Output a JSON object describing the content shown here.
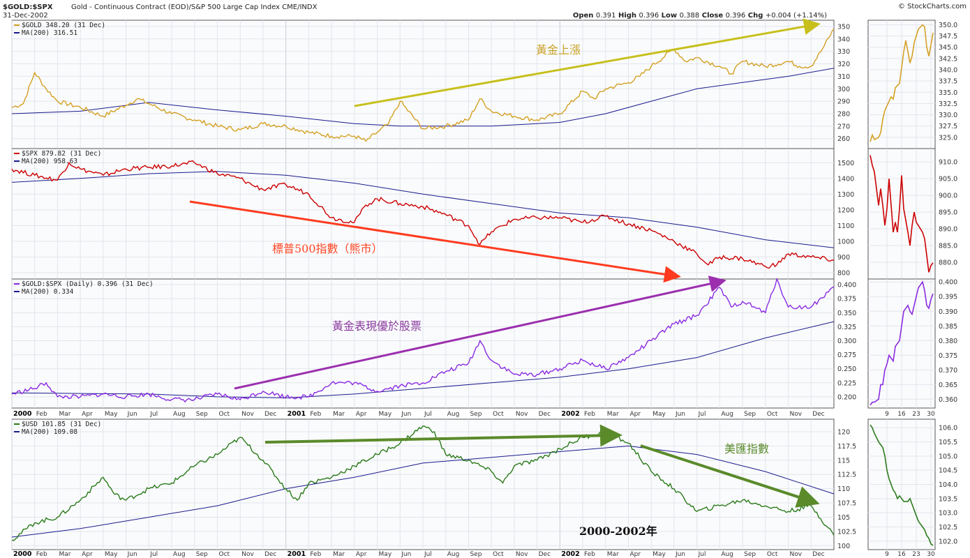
{
  "header": {
    "symbol": "$GOLD:$SPX",
    "description": "Gold - Continuous Contract (EOD)/S&P 500 Large Cap Index  CME/INDX",
    "date": "31-Dec-2002",
    "credit": "© StockCharts.com",
    "ohlc": {
      "open_label": "Open",
      "open": "0.391",
      "high_label": "High",
      "high": "0.396",
      "low_label": "Low",
      "low": "0.388",
      "close_label": "Close",
      "close": "0.396",
      "chg_label": "Chg",
      "chg": "+0.004 (+1.14%)"
    }
  },
  "x_axis": {
    "labels": [
      {
        "t": "2000",
        "m": 0,
        "bold": true
      },
      {
        "t": "Feb",
        "m": 1
      },
      {
        "t": "Mar",
        "m": 2
      },
      {
        "t": "Apr",
        "m": 3
      },
      {
        "t": "May",
        "m": 4
      },
      {
        "t": "Jun",
        "m": 5
      },
      {
        "t": "Jul",
        "m": 6
      },
      {
        "t": "Aug",
        "m": 7
      },
      {
        "t": "Sep",
        "m": 8
      },
      {
        "t": "Oct",
        "m": 9
      },
      {
        "t": "Nov",
        "m": 10
      },
      {
        "t": "Dec",
        "m": 11
      },
      {
        "t": "2001",
        "m": 12,
        "bold": true
      },
      {
        "t": "Feb",
        "m": 13
      },
      {
        "t": "Mar",
        "m": 14
      },
      {
        "t": "Apr",
        "m": 15
      },
      {
        "t": "May",
        "m": 16
      },
      {
        "t": "Jun",
        "m": 17
      },
      {
        "t": "Jul",
        "m": 18
      },
      {
        "t": "Aug",
        "m": 19
      },
      {
        "t": "Sep",
        "m": 20
      },
      {
        "t": "Oct",
        "m": 21
      },
      {
        "t": "Nov",
        "m": 22
      },
      {
        "t": "Dec",
        "m": 23
      },
      {
        "t": "2002",
        "m": 24,
        "bold": true
      },
      {
        "t": "Feb",
        "m": 25
      },
      {
        "t": "Mar",
        "m": 26
      },
      {
        "t": "Apr",
        "m": 27
      },
      {
        "t": "May",
        "m": 28
      },
      {
        "t": "Jun",
        "m": 29
      },
      {
        "t": "Jul",
        "m": 30
      },
      {
        "t": "Aug",
        "m": 31
      },
      {
        "t": "Sep",
        "m": 32
      },
      {
        "t": "Oct",
        "m": 33
      },
      {
        "t": "Nov",
        "m": 34
      },
      {
        "t": "Dec",
        "m": 35
      }
    ],
    "zoom_labels": [
      "9",
      "16",
      "23",
      "30"
    ]
  },
  "annotations": {
    "gold_up": "黃金上漲",
    "spx_bear": "標普500指數（熊市）",
    "gold_outperform": "黃金表現優於股票",
    "usd_index": "美匯指數",
    "period": "2000-2002年"
  },
  "chart_data": [
    {
      "type": "line",
      "title": "$GOLD",
      "legend": [
        {
          "name": "$GOLD 348.20 (31 Dec)",
          "color": "#d4a022"
        },
        {
          "name": "MA(200) 316.51",
          "color": "#1a1a8c"
        }
      ],
      "ylim": [
        252,
        355
      ],
      "yticks": [
        260,
        270,
        280,
        290,
        300,
        310,
        320,
        330,
        340,
        350
      ],
      "x_months": [
        0,
        0.5,
        1,
        1.5,
        2,
        3,
        4,
        5,
        5.5,
        6,
        7,
        8,
        9,
        10,
        11,
        12,
        13,
        14,
        15,
        15.5,
        16,
        16.5,
        17,
        18,
        19,
        20,
        20.5,
        21,
        22,
        23,
        24,
        25,
        25.5,
        26,
        27,
        27.5,
        28,
        29,
        29.5,
        30,
        31,
        31.5,
        32,
        33,
        34,
        34.5,
        35,
        35.5,
        36
      ],
      "values": [
        285,
        288,
        313,
        300,
        290,
        285,
        278,
        287,
        292,
        288,
        280,
        275,
        270,
        267,
        272,
        270,
        265,
        262,
        262,
        258,
        265,
        272,
        290,
        268,
        270,
        275,
        292,
        282,
        278,
        275,
        280,
        298,
        292,
        300,
        305,
        310,
        318,
        332,
        322,
        325,
        318,
        312,
        322,
        318,
        322,
        318,
        318,
        332,
        348
      ],
      "ma": {
        "name": "MA(200)",
        "x_months": [
          0,
          3,
          6,
          9,
          12,
          15,
          17,
          21,
          24,
          26,
          28,
          30,
          32,
          34,
          36
        ],
        "values": [
          280,
          282,
          289,
          283,
          278,
          272,
          270,
          270,
          273,
          280,
          290,
          300,
          305,
          310,
          316.51
        ]
      },
      "zoom": {
        "yticks": [
          325,
          327.5,
          330,
          332.5,
          335,
          337.5,
          340,
          342.5,
          345,
          347.5,
          350
        ],
        "ylim": [
          322.5,
          351
        ],
        "x_days": [
          1,
          2,
          3,
          5,
          6,
          7,
          8,
          9,
          10,
          11,
          12,
          13,
          15,
          16,
          17,
          18,
          19,
          20,
          21,
          22,
          23,
          24,
          26,
          27,
          28,
          29,
          30,
          31
        ],
        "values": [
          324,
          325.5,
          324.5,
          325,
          326,
          329,
          331,
          332,
          333,
          334,
          333.5,
          336,
          337,
          340.5,
          344,
          346.5,
          344,
          341.5,
          343,
          346,
          347.5,
          349,
          350,
          349.5,
          345,
          343,
          345.5,
          348.2
        ]
      }
    },
    {
      "type": "line",
      "title": "$SPX",
      "legend": [
        {
          "name": "$SPX 879.82 (31 Dec)",
          "color": "#cc0000"
        },
        {
          "name": "MA(200) 958.63",
          "color": "#1a1a8c"
        }
      ],
      "ylim": [
        760,
        1590
      ],
      "yticks": [
        800,
        900,
        1000,
        1100,
        1200,
        1300,
        1400,
        1500
      ],
      "x_months": [
        0,
        1,
        2,
        2.5,
        3,
        4,
        5,
        6,
        7,
        8,
        9,
        10,
        10.5,
        11,
        12,
        13,
        14,
        15,
        15.5,
        16,
        17,
        18,
        19,
        20,
        20.5,
        21,
        22,
        23,
        24,
        25,
        26,
        27,
        28,
        29,
        30,
        30.5,
        31,
        32,
        33,
        33.5,
        34,
        35,
        36
      ],
      "values": [
        1460,
        1420,
        1390,
        1500,
        1460,
        1420,
        1460,
        1470,
        1480,
        1500,
        1430,
        1400,
        1360,
        1330,
        1360,
        1300,
        1150,
        1120,
        1230,
        1270,
        1240,
        1220,
        1170,
        1100,
        980,
        1060,
        1140,
        1150,
        1150,
        1120,
        1160,
        1110,
        1070,
        1000,
        920,
        850,
        900,
        890,
        840,
        850,
        920,
        900,
        879.82
      ],
      "ma": {
        "name": "MA(200)",
        "x_months": [
          0,
          3,
          6,
          9,
          12,
          15,
          18,
          21,
          24,
          27,
          30,
          33,
          36
        ],
        "values": [
          1375,
          1400,
          1430,
          1445,
          1420,
          1370,
          1300,
          1240,
          1180,
          1150,
          1090,
          1010,
          958.63
        ]
      },
      "zoom": {
        "yticks": [
          880,
          885,
          890,
          895,
          900,
          905,
          910
        ],
        "ylim": [
          875,
          914
        ],
        "x_days": [
          1,
          2,
          3,
          5,
          6,
          7,
          8,
          9,
          10,
          12,
          13,
          14,
          15,
          16,
          17,
          19,
          20,
          21,
          22,
          23,
          24,
          26,
          27,
          28,
          29,
          30,
          31
        ],
        "values": [
          912,
          909,
          907,
          897,
          902,
          897,
          891,
          896,
          905,
          889,
          892,
          889,
          896,
          906,
          896,
          889,
          885,
          891,
          895,
          892,
          891,
          889,
          887,
          882,
          877,
          879,
          879.82
        ]
      }
    },
    {
      "type": "line",
      "title": "$GOLD:$SPX (Daily)",
      "legend": [
        {
          "name": "$GOLD:$SPX (Daily) 0.396 (31 Dec)",
          "color": "#8a2be2"
        },
        {
          "name": "MA(200) 0.334",
          "color": "#1a1a8c"
        }
      ],
      "ylim": [
        0.18,
        0.41
      ],
      "yticks": [
        0.2,
        0.225,
        0.25,
        0.275,
        0.3,
        0.325,
        0.35,
        0.375,
        0.4
      ],
      "x_months": [
        0,
        1,
        1.5,
        2,
        3,
        4,
        5,
        6,
        7,
        8,
        9,
        10,
        11,
        12,
        13,
        14,
        15,
        16,
        17,
        18,
        19,
        20,
        20.5,
        21,
        22,
        23,
        24,
        25,
        26,
        27,
        28,
        29,
        30,
        31,
        31.5,
        32,
        33,
        33.5,
        34,
        35,
        36
      ],
      "values": [
        0.205,
        0.215,
        0.225,
        0.2,
        0.2,
        0.205,
        0.2,
        0.205,
        0.195,
        0.195,
        0.205,
        0.195,
        0.21,
        0.2,
        0.2,
        0.225,
        0.225,
        0.21,
        0.22,
        0.225,
        0.245,
        0.26,
        0.3,
        0.265,
        0.24,
        0.24,
        0.25,
        0.265,
        0.25,
        0.27,
        0.3,
        0.33,
        0.345,
        0.395,
        0.36,
        0.37,
        0.35,
        0.41,
        0.36,
        0.36,
        0.396
      ],
      "ma": {
        "name": "MA(200)",
        "x_months": [
          0,
          6,
          9,
          12,
          15,
          18,
          21,
          24,
          27,
          30,
          33,
          36
        ],
        "values": [
          0.207,
          0.205,
          0.2,
          0.198,
          0.205,
          0.215,
          0.225,
          0.235,
          0.25,
          0.27,
          0.305,
          0.334
        ]
      },
      "zoom": {
        "yticks": [
          0.36,
          0.365,
          0.37,
          0.375,
          0.38,
          0.385,
          0.39,
          0.395,
          0.4
        ],
        "ylim": [
          0.357,
          0.401
        ],
        "x_days": [
          1,
          2,
          3,
          5,
          6,
          7,
          8,
          9,
          10,
          12,
          13,
          14,
          15,
          16,
          17,
          19,
          20,
          21,
          22,
          23,
          24,
          26,
          27,
          28,
          29,
          30,
          31
        ],
        "values": [
          0.358,
          0.359,
          0.359,
          0.36,
          0.365,
          0.365,
          0.37,
          0.372,
          0.375,
          0.373,
          0.378,
          0.379,
          0.38,
          0.385,
          0.39,
          0.392,
          0.39,
          0.389,
          0.392,
          0.395,
          0.398,
          0.4,
          0.397,
          0.392,
          0.391,
          0.394,
          0.396
        ]
      }
    },
    {
      "type": "line",
      "title": "$USD",
      "legend": [
        {
          "name": "$USD 101.85 (31 Dec)",
          "color": "#2a7a1a"
        },
        {
          "name": "MA(200) 109.08",
          "color": "#1a1a8c"
        }
      ],
      "ylim": [
        99.3,
        122.2
      ],
      "yticks": [
        100,
        102.5,
        105,
        107.5,
        110,
        112.5,
        115,
        117.5,
        120
      ],
      "x_months": [
        0,
        1,
        2,
        3,
        4,
        4.5,
        5,
        6,
        7,
        8,
        9,
        10,
        11,
        12,
        12.5,
        13,
        14,
        15,
        16,
        17,
        18,
        18.5,
        19,
        20,
        21,
        21.5,
        22,
        23,
        24,
        25,
        26,
        27,
        28,
        29,
        30,
        31,
        32,
        33,
        34,
        35,
        36
      ],
      "values": [
        101,
        104,
        105,
        108,
        112,
        109,
        108,
        110,
        111,
        114,
        116,
        119,
        115,
        110,
        108,
        111,
        112,
        114,
        116,
        118,
        121,
        120,
        116,
        115,
        113,
        111,
        114,
        115,
        117,
        119,
        120,
        118,
        113,
        110,
        106,
        107,
        108,
        107,
        106,
        107,
        101.85
      ],
      "ma": {
        "name": "MA(200)",
        "x_months": [
          0,
          3,
          6,
          9,
          12,
          15,
          18,
          21,
          24,
          27,
          30,
          33,
          36
        ],
        "values": [
          101.5,
          103,
          105,
          107,
          110,
          112,
          114.5,
          115.5,
          116.5,
          117.5,
          116,
          113,
          109.08
        ]
      },
      "zoom": {
        "yticks": [
          102,
          102.5,
          103,
          103.5,
          104,
          104.5,
          105,
          105.5,
          106
        ],
        "ylim": [
          101.7,
          106.3
        ],
        "x_days": [
          1,
          2,
          3,
          5,
          6,
          7,
          8,
          9,
          10,
          12,
          13,
          14,
          15,
          16,
          17,
          19,
          20,
          21,
          22,
          23,
          24,
          26,
          27,
          28,
          29,
          30,
          31
        ],
        "values": [
          106.1,
          106,
          105.8,
          105.5,
          105.4,
          105.3,
          105,
          104.5,
          104.2,
          103.8,
          103.7,
          103.5,
          103.6,
          103.5,
          103.4,
          103.4,
          103.5,
          103.3,
          103.1,
          102.9,
          102.7,
          102.5,
          102.4,
          102.2,
          102.1,
          101.9,
          101.85
        ]
      }
    }
  ]
}
